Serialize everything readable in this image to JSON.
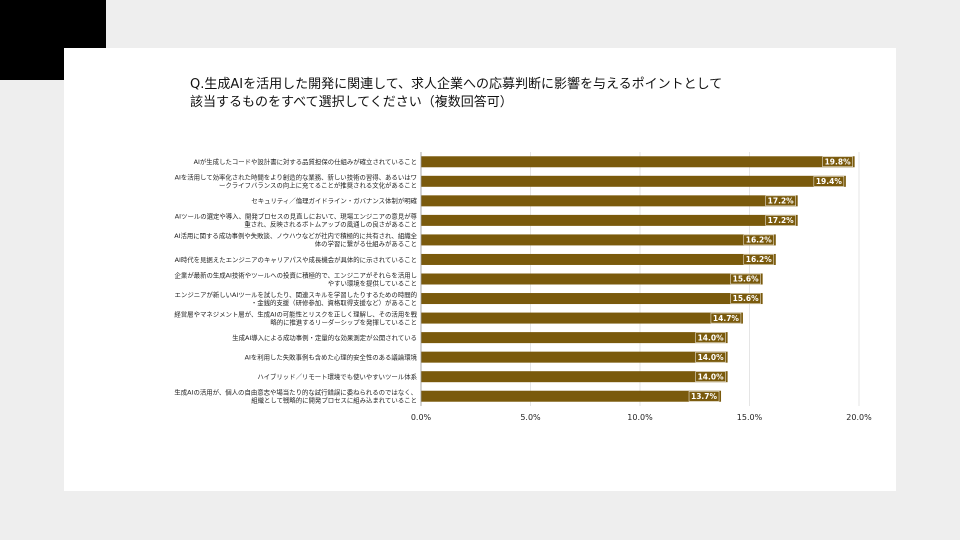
{
  "question": {
    "line1": "Q.生成AIを活用した開発に関連して、求人企業への応募判断に影響を与えるポイントとして",
    "line2": "該当するものをすべて選択してください（複数回答可）"
  },
  "chart_data": {
    "type": "bar",
    "orientation": "horizontal",
    "bar_color": "#7a5a0c",
    "value_label_bg": "#7a5a0c",
    "xlim": [
      0,
      20
    ],
    "xticks": [
      "0.0%",
      "5.0%",
      "10.0%",
      "15.0%",
      "20.0%"
    ],
    "grid": true,
    "categories": [
      [
        "AIが生成したコードや設計書に対する品質担保の仕組みが確立されていること"
      ],
      [
        "AIを活用して効率化された時間をより創造的な業務、新しい技術の習得、あるいはワ",
        "ークライフバランスの向上に充てることが推奨される文化があること"
      ],
      [
        "セキュリティ／倫理ガイドライン・ガバナンス体制が明確"
      ],
      [
        "AIツールの選定や導入、開発プロセスの見直しにおいて、現場エンジニアの意見が尊",
        "重され、反映されるボトムアップの風通しの良さがあること"
      ],
      [
        "AI活用に関する成功事例や失敗談、ノウハウなどが社内で積極的に共有され、組織全",
        "体の学習に繋がる仕組みがあること"
      ],
      [
        "AI時代を見据えたエンジニアのキャリアパスや成長機会が具体的に示されていること"
      ],
      [
        "企業が最新の生成AI技術やツールへの投資に積極的で、エンジニアがそれらを活用し",
        "やすい環境を提供していること"
      ],
      [
        "エンジニアが新しいAIツールを試したり、関連スキルを学習したりするための時間的",
        "・金銭的支援（研修参加、資格取得支援など）があること"
      ],
      [
        "経営層やマネジメント層が、生成AIの可能性とリスクを正しく理解し、その活用を戦",
        "略的に推進するリーダーシップを発揮していること"
      ],
      [
        "生成AI導入による成功事例・定量的な効果測定が公開されている"
      ],
      [
        "AIを利用した失敗事例も含めた心理的安全性のある議論環境"
      ],
      [
        "ハイブリッド／リモート環境でも使いやすいツール体系"
      ],
      [
        "生成AIの活用が、個人の自由意志や場当たり的な試行錯誤に委ねられるのではなく、",
        "組織として戦略的に開発プロセスに組み込まれていること"
      ]
    ],
    "values": [
      19.8,
      19.4,
      17.2,
      17.2,
      16.2,
      16.2,
      15.6,
      15.6,
      14.7,
      14.0,
      14.0,
      14.0,
      13.7
    ],
    "value_labels": [
      "19.8%",
      "19.4%",
      "17.2%",
      "17.2%",
      "16.2%",
      "16.2%",
      "15.6%",
      "15.6%",
      "14.7%",
      "14.0%",
      "14.0%",
      "14.0%",
      "13.7%"
    ]
  }
}
